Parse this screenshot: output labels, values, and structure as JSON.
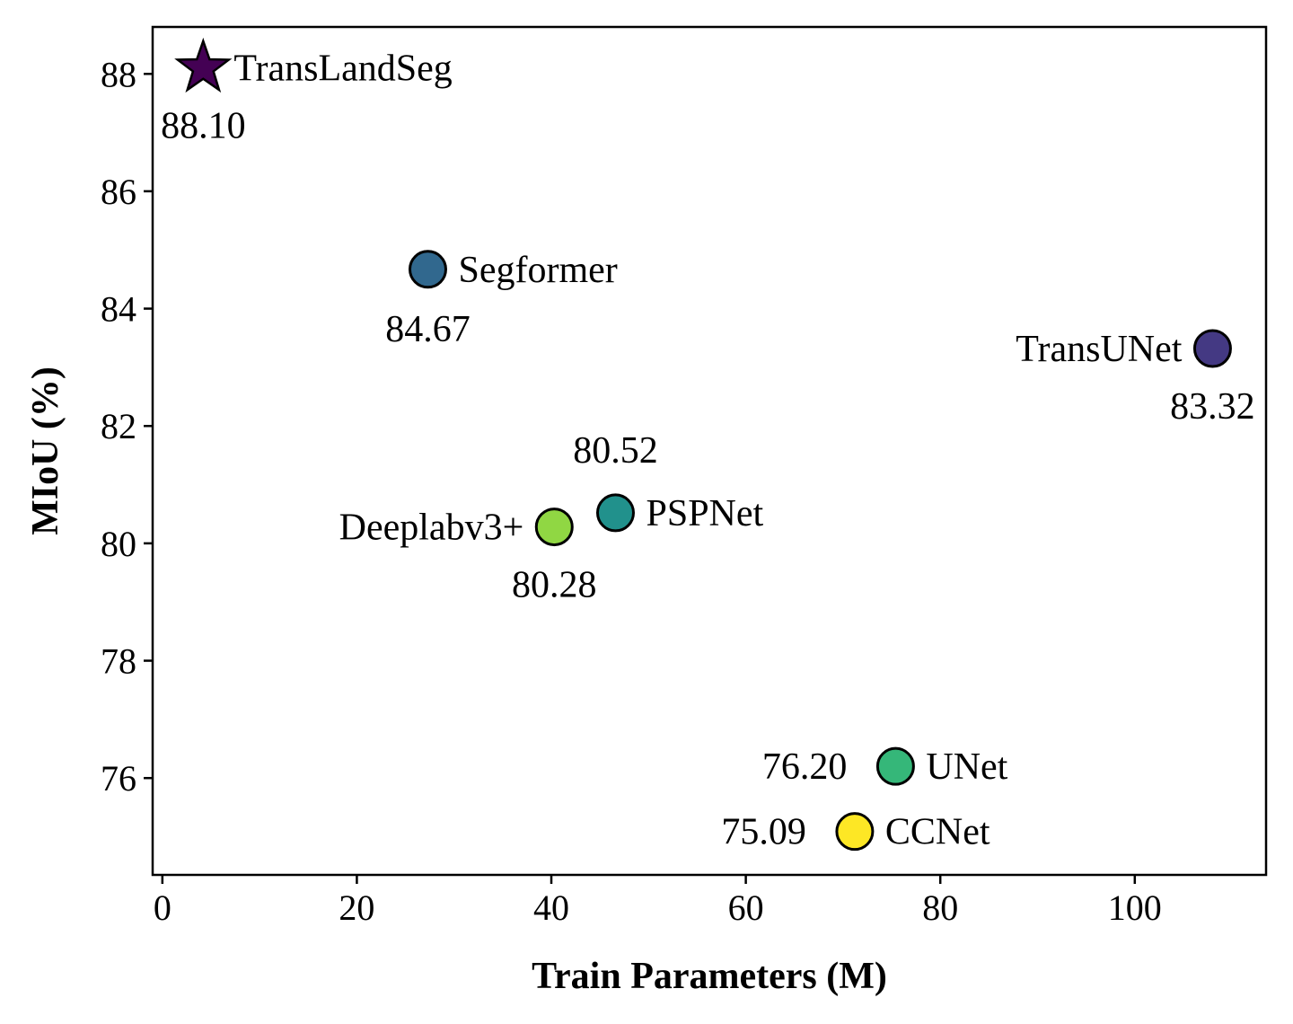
{
  "chart_data": {
    "type": "scatter",
    "title": "",
    "xlabel": "Train Parameters (M)",
    "ylabel": "MIoU (%)",
    "xlim": [
      -1,
      113.5
    ],
    "ylim": [
      74.35,
      88.8
    ],
    "xticks": [
      "0",
      "20",
      "40",
      "60",
      "80",
      "100"
    ],
    "yticks": [
      "76",
      "78",
      "80",
      "82",
      "84",
      "86",
      "88"
    ],
    "grid": false,
    "points": [
      {
        "name": "TransLandSeg",
        "x": 4.2,
        "y": 88.1,
        "value_label": "88.10",
        "marker": "star",
        "color": "#440154"
      },
      {
        "name": "Segformer",
        "x": 27.3,
        "y": 84.67,
        "value_label": "84.67",
        "marker": "circle",
        "color": "#31688e"
      },
      {
        "name": "TransUNet",
        "x": 108.0,
        "y": 83.32,
        "value_label": "83.32",
        "marker": "circle",
        "color": "#443983"
      },
      {
        "name": "PSPNet",
        "x": 46.6,
        "y": 80.52,
        "value_label": "80.52",
        "marker": "circle",
        "color": "#21918c"
      },
      {
        "name": "Deeplabv3+",
        "x": 40.3,
        "y": 80.28,
        "value_label": "80.28",
        "marker": "circle",
        "color": "#90d743"
      },
      {
        "name": "UNet",
        "x": 75.4,
        "y": 76.2,
        "value_label": "76.20",
        "marker": "circle",
        "color": "#35b779"
      },
      {
        "name": "CCNet",
        "x": 71.2,
        "y": 75.09,
        "value_label": "75.09",
        "marker": "circle",
        "color": "#fde725"
      }
    ]
  }
}
